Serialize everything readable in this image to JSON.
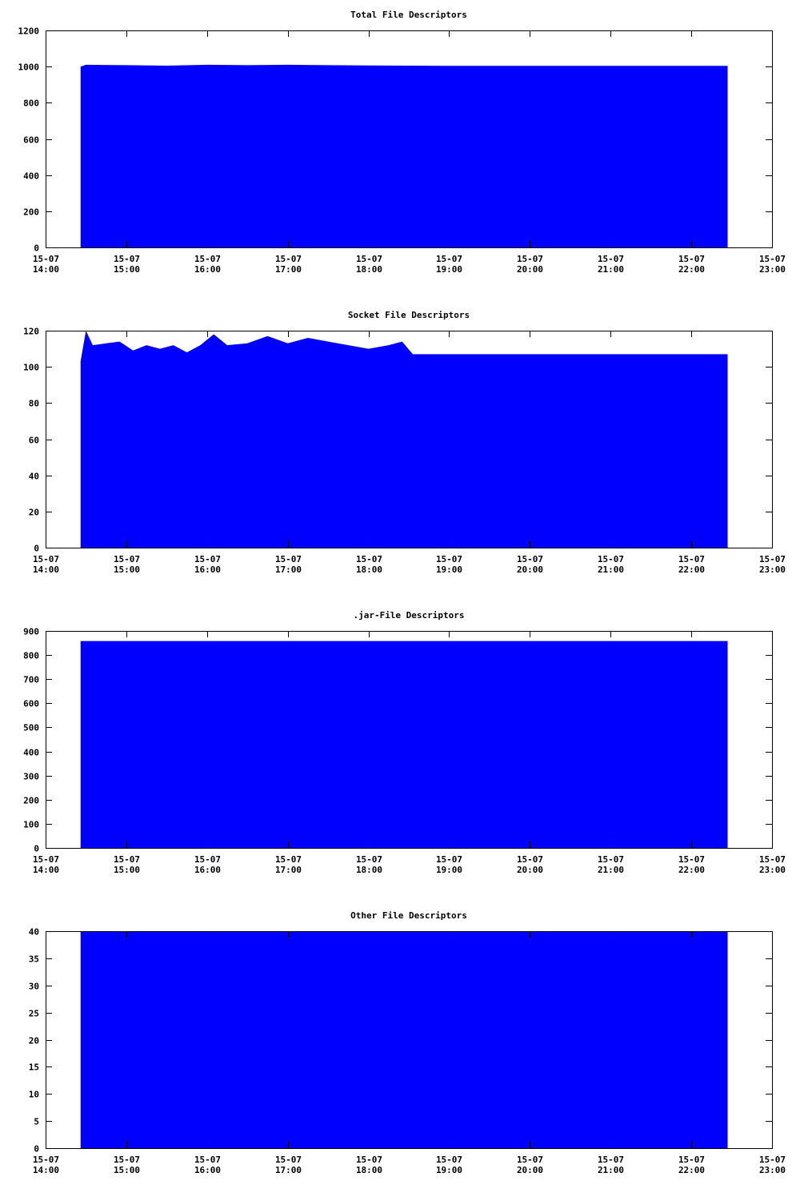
{
  "x_ticks": [
    {
      "date": "15-07",
      "time": "14:00"
    },
    {
      "date": "15-07",
      "time": "15:00"
    },
    {
      "date": "15-07",
      "time": "16:00"
    },
    {
      "date": "15-07",
      "time": "17:00"
    },
    {
      "date": "15-07",
      "time": "18:00"
    },
    {
      "date": "15-07",
      "time": "19:00"
    },
    {
      "date": "15-07",
      "time": "20:00"
    },
    {
      "date": "15-07",
      "time": "21:00"
    },
    {
      "date": "15-07",
      "time": "22:00"
    },
    {
      "date": "15-07",
      "time": "23:00"
    }
  ],
  "fill_color": "#0000ff",
  "chart_data": [
    {
      "type": "area",
      "title": "Total File Descriptors",
      "xlim": [
        "15-07 14:00",
        "15-07 23:00"
      ],
      "ylim": [
        0,
        1200
      ],
      "yticks": [
        "0",
        "200",
        "400",
        "600",
        "800",
        "1000",
        "1200"
      ],
      "x": [
        "15-07 14:26",
        "15-07 14:30",
        "15-07 15:00",
        "15-07 15:30",
        "15-07 16:00",
        "15-07 16:30",
        "15-07 17:00",
        "15-07 17:30",
        "15-07 18:00",
        "15-07 18:30",
        "15-07 19:00",
        "15-07 22:27"
      ],
      "values": [
        1000,
        1010,
        1008,
        1005,
        1010,
        1008,
        1010,
        1008,
        1006,
        1005,
        1004,
        1004
      ]
    },
    {
      "type": "area",
      "title": "Socket File Descriptors",
      "xlim": [
        "15-07 14:00",
        "15-07 23:00"
      ],
      "ylim": [
        0,
        120
      ],
      "yticks": [
        "0",
        "20",
        "40",
        "60",
        "80",
        "100",
        "120"
      ],
      "x": [
        "15-07 14:26",
        "15-07 14:30",
        "15-07 14:35",
        "15-07 14:45",
        "15-07 14:55",
        "15-07 15:05",
        "15-07 15:15",
        "15-07 15:25",
        "15-07 15:35",
        "15-07 15:45",
        "15-07 15:55",
        "15-07 16:05",
        "15-07 16:15",
        "15-07 16:30",
        "15-07 16:45",
        "15-07 17:00",
        "15-07 17:15",
        "15-07 17:30",
        "15-07 17:45",
        "15-07 18:00",
        "15-07 18:15",
        "15-07 18:25",
        "15-07 18:33",
        "15-07 22:27"
      ],
      "values": [
        103,
        120,
        112,
        113,
        114,
        109,
        112,
        110,
        112,
        108,
        112,
        118,
        112,
        113,
        117,
        113,
        116,
        114,
        112,
        110,
        112,
        114,
        107,
        107
      ]
    },
    {
      "type": "area",
      "title": ".jar-File Descriptors",
      "xlim": [
        "15-07 14:00",
        "15-07 23:00"
      ],
      "ylim": [
        0,
        900
      ],
      "yticks": [
        "0",
        "100",
        "200",
        "300",
        "400",
        "500",
        "600",
        "700",
        "800",
        "900"
      ],
      "x": [
        "15-07 14:26",
        "15-07 22:27"
      ],
      "values": [
        858,
        858
      ]
    },
    {
      "type": "area",
      "title": "Other File Descriptors",
      "xlim": [
        "15-07 14:00",
        "15-07 23:00"
      ],
      "ylim": [
        0,
        40
      ],
      "yticks": [
        "0",
        "5",
        "10",
        "15",
        "20",
        "25",
        "30",
        "35",
        "40"
      ],
      "x": [
        "15-07 14:26",
        "15-07 22:27"
      ],
      "values": [
        40,
        40
      ]
    }
  ]
}
